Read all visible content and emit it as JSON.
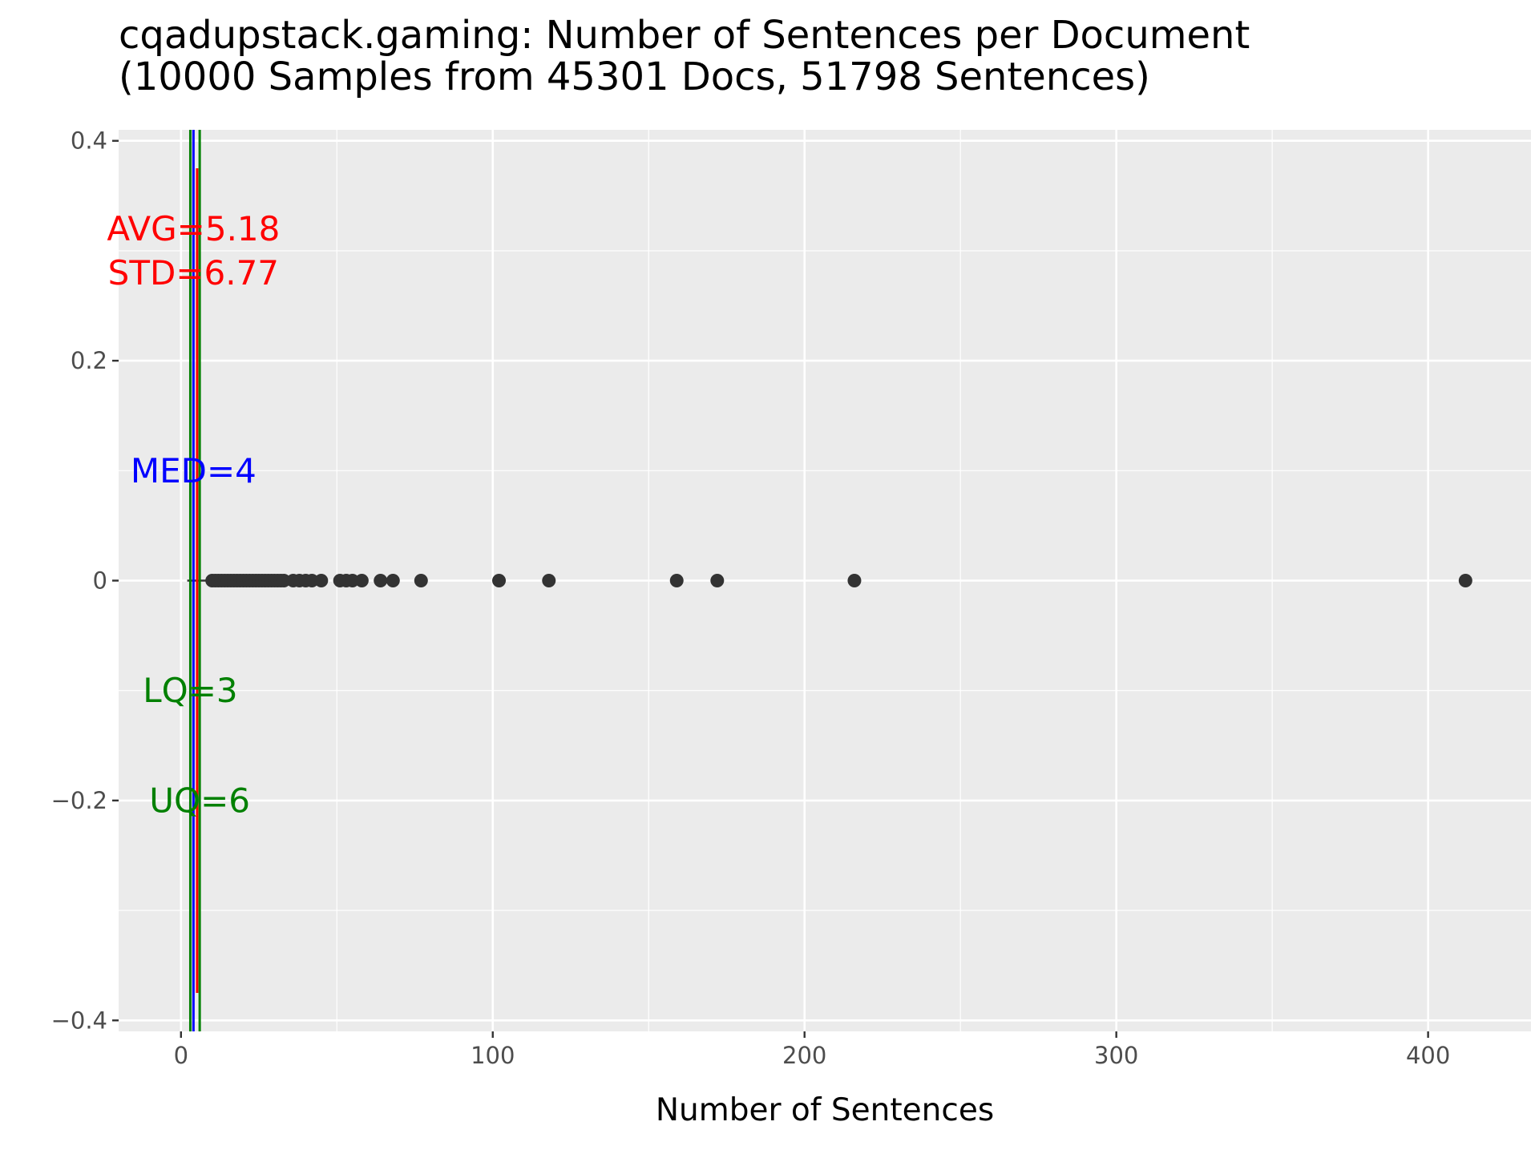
{
  "chart_data": {
    "type": "scatter",
    "title": [
      "cqadupstack.gaming: Number of Sentences per Document",
      "(10000 Samples from 45301 Docs, 51798 Sentences)"
    ],
    "xlabel": "Number of Sentences",
    "ylabel": "",
    "xlim": [
      -20,
      433
    ],
    "ylim": [
      -0.41,
      0.41
    ],
    "x_ticks": [
      0,
      100,
      200,
      300,
      400
    ],
    "x_tick_labels": [
      "0",
      "100",
      "200",
      "300",
      "400"
    ],
    "y_ticks": [
      0.4,
      0.2,
      0,
      -0.2,
      -0.4
    ],
    "y_tick_labels": [
      "0.4",
      "0.2",
      "0",
      "−0.2",
      "−0.4"
    ],
    "grid": true,
    "background": "#ebebeb",
    "whisker": {
      "x_start": 2,
      "x_end": 10,
      "y": 0
    },
    "points": {
      "color": "#333333",
      "y": 0,
      "x": [
        10,
        11,
        12,
        13,
        14,
        15,
        16,
        17,
        18,
        19,
        20,
        21,
        22,
        23,
        24,
        25,
        26,
        27,
        28,
        29,
        30,
        31,
        32,
        33,
        36,
        38,
        40,
        42,
        45,
        51,
        53,
        55,
        58,
        64,
        68,
        77,
        102,
        118,
        159,
        172,
        216,
        412
      ]
    },
    "reference_lines": [
      {
        "name": "lq",
        "x": 3,
        "color": "#008000"
      },
      {
        "name": "median",
        "x": 4,
        "color": "#0000ff"
      },
      {
        "name": "mean",
        "x": 5.18,
        "color": "#ff0000",
        "y_range": [
          -0.375,
          0.375
        ]
      },
      {
        "name": "uq",
        "x": 6,
        "color": "#008000"
      }
    ],
    "annotations": [
      {
        "name": "avg",
        "text": "AVG=5.18",
        "x": 4,
        "y": 0.32,
        "color": "#ff0000"
      },
      {
        "name": "std",
        "text": "STD=6.77",
        "x": 4,
        "y": 0.28,
        "color": "#ff0000"
      },
      {
        "name": "med",
        "text": "MED=4",
        "x": 4,
        "y": 0.1,
        "color": "#0000ff"
      },
      {
        "name": "lq",
        "text": "LQ=3",
        "x": 3,
        "y": -0.1,
        "color": "#008000"
      },
      {
        "name": "uq",
        "text": "UQ=6",
        "x": 6,
        "y": -0.2,
        "color": "#008000"
      }
    ]
  }
}
